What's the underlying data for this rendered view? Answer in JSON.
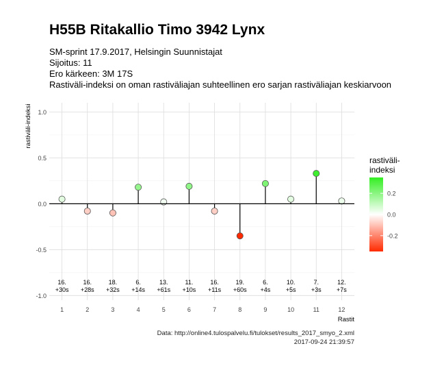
{
  "header": {
    "title": "H55B Ritakallio Timo 3942 Lynx",
    "subtitle_lines": [
      "SM-sprint 17.9.2017, Helsingin Suunnistajat",
      "Sijoitus: 11",
      "Ero kärkeen: 3M 17S",
      "Rastiväli-indeksi on oman rastiväliajan suhteellinen ero sarjan rastiväliajan keskiarvoon"
    ]
  },
  "caption": {
    "source": "Data: http://online4.tulospalvelu.fi/tulokset/results_2017_smyo_2.xml",
    "timestamp": "2017-09-24 21:39:57"
  },
  "chart_data": {
    "type": "scatter",
    "style": "lollipop",
    "x": [
      1,
      2,
      3,
      4,
      5,
      6,
      7,
      8,
      9,
      10,
      11,
      12
    ],
    "y": [
      0.05,
      -0.08,
      -0.1,
      0.18,
      0.02,
      0.19,
      -0.08,
      -0.35,
      0.22,
      0.05,
      0.33,
      0.03
    ],
    "point_labels": [
      [
        "16.",
        "+30s"
      ],
      [
        "16.",
        "+28s"
      ],
      [
        "18.",
        "+32s"
      ],
      [
        "6.",
        "+14s"
      ],
      [
        "13.",
        "+61s"
      ],
      [
        "11.",
        "+10s"
      ],
      [
        "16.",
        "+11s"
      ],
      [
        "19.",
        "+60s"
      ],
      [
        "6.",
        "+4s"
      ],
      [
        "10.",
        "+5s"
      ],
      [
        "7.",
        "+3s"
      ],
      [
        "12.",
        "+7s"
      ]
    ],
    "xlabel": "Rastit",
    "ylabel": "rastiväli-indeksi",
    "xticks": [
      "1",
      "2",
      "3",
      "4",
      "5",
      "6",
      "7",
      "8",
      "9",
      "10",
      "11",
      "12"
    ],
    "yticks": [
      "1.0",
      "0.5",
      "0.0",
      "-0.5",
      "-1.0"
    ],
    "ytick_values": [
      1.0,
      0.5,
      0.0,
      -0.5,
      -1.0
    ],
    "xlim": [
      0.5,
      12.5
    ],
    "ylim": [
      -1.05,
      1.1
    ],
    "grid": true,
    "legend": {
      "title_lines": [
        "rastiväli-",
        "indeksi"
      ],
      "ticks": [
        "0.2",
        "0.0",
        "-0.2"
      ],
      "tick_values": [
        0.2,
        0.0,
        -0.2
      ],
      "range": [
        -0.35,
        0.35
      ],
      "colors": {
        "low": "#ff2a00",
        "mid": "#ffffff",
        "high": "#33ee22"
      },
      "position": "right"
    }
  }
}
